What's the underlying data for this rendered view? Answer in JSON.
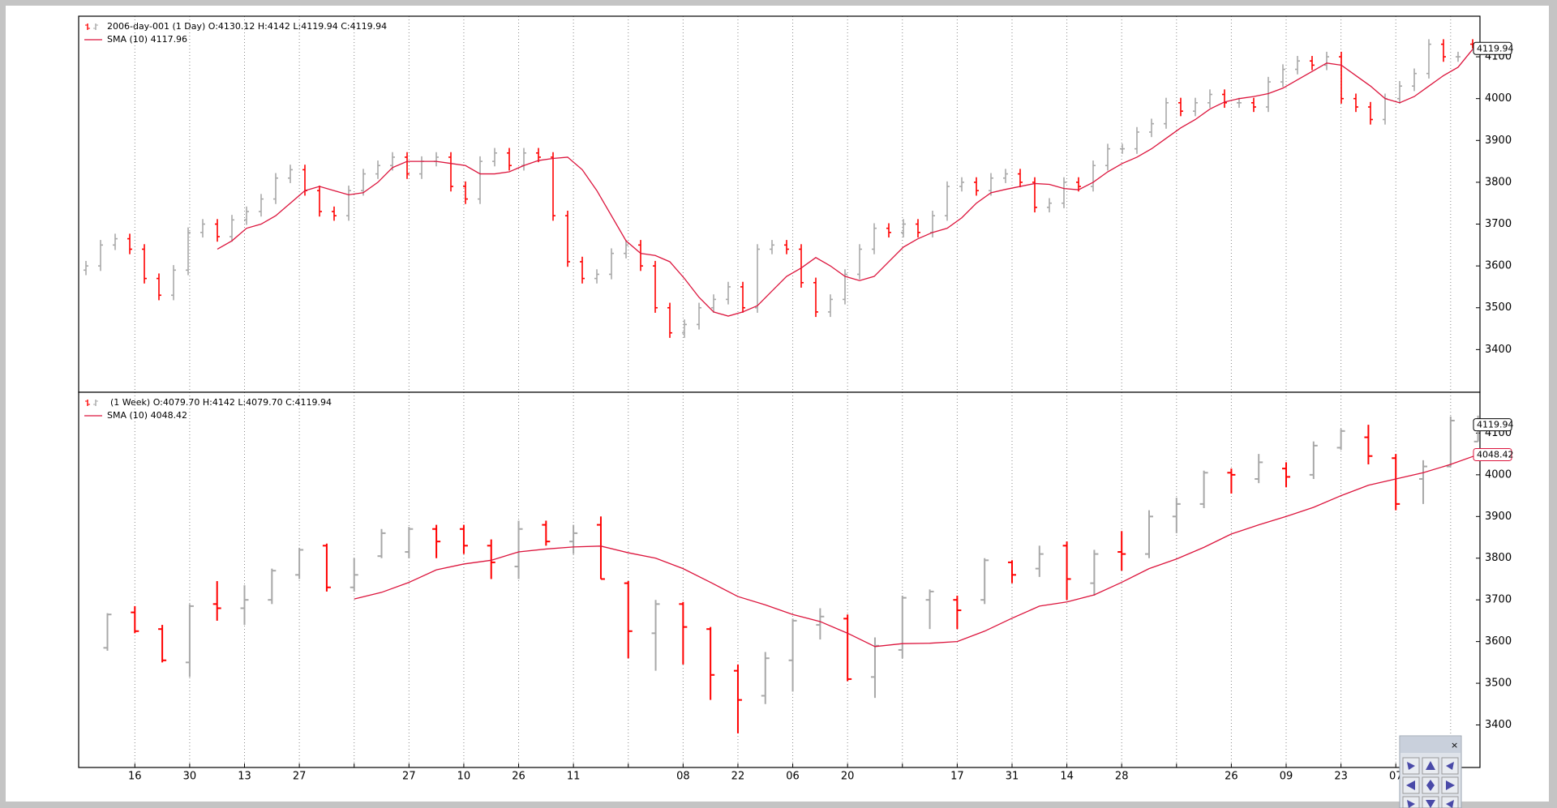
{
  "chart_data": [
    {
      "type": "ohlc",
      "series": [
        {
          "name": "2006-day-001 (1 Day) O:4130.12 H:4142 L:4119.94 C:4119.94",
          "up_color": "#a8a8a8",
          "down_color": "#ff0000",
          "open": [
            3590,
            3600,
            3650,
            3665,
            3640,
            3570,
            3530,
            3590,
            3680,
            3700,
            3670,
            3710,
            3730,
            3760,
            3810,
            3830,
            3780,
            3730,
            3720,
            3780,
            3820,
            3840,
            3860,
            3820,
            3850,
            3860,
            3790,
            3760,
            3850,
            3870,
            3840,
            3870,
            3860,
            3720,
            3610,
            3570,
            3580,
            3630,
            3650,
            3600,
            3500,
            3440,
            3460,
            3500,
            3520,
            3550,
            3500,
            3640,
            3650,
            3640,
            3560,
            3490,
            3520,
            3580,
            3640,
            3690,
            3680,
            3700,
            3680,
            3720,
            3790,
            3800,
            3780,
            3810,
            3820,
            3800,
            3740,
            3750,
            3800,
            3790,
            3840,
            3880,
            3880,
            3920,
            3940,
            3990,
            3970,
            3990,
            4010,
            3990,
            3990,
            3980,
            4040,
            4070,
            4090,
            4080,
            4100,
            4000,
            3980,
            3950,
            4000,
            4030,
            4060,
            4130,
            4100,
            4130.12
          ],
          "high": [
            3612,
            3662,
            3677,
            3677,
            3652,
            3582,
            3602,
            3692,
            3712,
            3712,
            3722,
            3742,
            3772,
            3822,
            3842,
            3842,
            3792,
            3742,
            3792,
            3832,
            3852,
            3872,
            3872,
            3862,
            3872,
            3872,
            3802,
            3862,
            3882,
            3882,
            3882,
            3882,
            3872,
            3732,
            3622,
            3592,
            3642,
            3662,
            3662,
            3612,
            3512,
            3472,
            3512,
            3532,
            3562,
            3562,
            3652,
            3662,
            3662,
            3652,
            3572,
            3532,
            3592,
            3652,
            3702,
            3702,
            3712,
            3712,
            3732,
            3802,
            3812,
            3812,
            3822,
            3832,
            3832,
            3812,
            3762,
            3812,
            3812,
            3852,
            3892,
            3892,
            3932,
            3952,
            4002,
            4002,
            4002,
            4022,
            4022,
            4002,
            4002,
            4052,
            4082,
            4102,
            4102,
            4112,
            4112,
            4012,
            3992,
            4012,
            4042,
            4072,
            4142,
            4142,
            4112,
            4142
          ],
          "low": [
            3578,
            3588,
            3638,
            3628,
            3558,
            3518,
            3518,
            3578,
            3668,
            3658,
            3658,
            3698,
            3718,
            3748,
            3798,
            3768,
            3718,
            3708,
            3708,
            3768,
            3808,
            3828,
            3808,
            3808,
            3838,
            3778,
            3748,
            3748,
            3838,
            3828,
            3828,
            3848,
            3708,
            3598,
            3558,
            3558,
            3568,
            3618,
            3588,
            3488,
            3428,
            3428,
            3448,
            3488,
            3508,
            3488,
            3488,
            3628,
            3628,
            3548,
            3478,
            3478,
            3508,
            3568,
            3628,
            3668,
            3668,
            3668,
            3668,
            3708,
            3778,
            3768,
            3768,
            3798,
            3788,
            3728,
            3728,
            3738,
            3778,
            3778,
            3828,
            3868,
            3868,
            3908,
            3928,
            3958,
            3958,
            3978,
            3978,
            3978,
            3968,
            3968,
            4028,
            4058,
            4068,
            4068,
            3988,
            3968,
            3938,
            3938,
            3988,
            4018,
            4048,
            4088,
            4088,
            4119.94
          ],
          "close": [
            3600,
            3650,
            3665,
            3640,
            3570,
            3530,
            3590,
            3680,
            3700,
            3670,
            3710,
            3730,
            3760,
            3810,
            3830,
            3780,
            3730,
            3720,
            3780,
            3820,
            3840,
            3860,
            3820,
            3850,
            3860,
            3790,
            3760,
            3850,
            3870,
            3840,
            3870,
            3860,
            3720,
            3610,
            3570,
            3580,
            3630,
            3650,
            3600,
            3500,
            3440,
            3460,
            3500,
            3520,
            3550,
            3500,
            3640,
            3650,
            3640,
            3560,
            3490,
            3520,
            3580,
            3640,
            3690,
            3680,
            3700,
            3680,
            3720,
            3790,
            3800,
            3780,
            3810,
            3820,
            3800,
            3740,
            3750,
            3800,
            3790,
            3840,
            3880,
            3880,
            3920,
            3940,
            3990,
            3970,
            3990,
            4010,
            3990,
            3990,
            3980,
            4040,
            4070,
            4090,
            4080,
            4100,
            4000,
            3980,
            3950,
            4000,
            4030,
            4060,
            4130,
            4100,
            4100,
            4119.94
          ]
        },
        {
          "name": "SMA (10) 4117.96",
          "type": "line",
          "color": "#dc143c",
          "values": [
            null,
            null,
            null,
            null,
            null,
            null,
            null,
            null,
            null,
            3640,
            3660,
            3690,
            3700,
            3720,
            3750,
            3780,
            3790,
            3780,
            3770,
            3775,
            3800,
            3835,
            3850,
            3850,
            3850,
            3845,
            3840,
            3820,
            3820,
            3825,
            3840,
            3852,
            3857,
            3860,
            3830,
            3780,
            3720,
            3660,
            3630,
            3625,
            3610,
            3570,
            3525,
            3490,
            3480,
            3490,
            3505,
            3540,
            3575,
            3595,
            3620,
            3600,
            3575,
            3565,
            3575,
            3610,
            3645,
            3665,
            3680,
            3690,
            3715,
            3750,
            3775,
            3783,
            3790,
            3797,
            3795,
            3785,
            3782,
            3800,
            3825,
            3845,
            3860,
            3880,
            3905,
            3930,
            3950,
            3975,
            3992,
            4000,
            4005,
            4012,
            4025,
            4045,
            4065,
            4085,
            4080,
            4055,
            4030,
            4000,
            3990,
            4005,
            4030,
            4055,
            4075,
            4117.96
          ]
        }
      ],
      "ylim": [
        3298,
        4197
      ],
      "yticks": [
        3400,
        3500,
        3600,
        3700,
        3800,
        3900,
        4000,
        4100
      ],
      "grid": true,
      "legend": "upper left",
      "price_tags": [
        {
          "value": 4119.94,
          "label": "4119.94",
          "color": "#000000"
        }
      ]
    },
    {
      "type": "ohlc",
      "series": [
        {
          "name": "(1 Week) O:4079.70 H:4142 L:4079.70 C:4119.94",
          "up_color": "#a8a8a8",
          "down_color": "#ff0000",
          "open": [
            3585,
            3670,
            3630,
            3550,
            3690,
            3680,
            3700,
            3760,
            3830,
            3730,
            3805,
            3815,
            3870,
            3870,
            3830,
            3780,
            3880,
            3840,
            3880,
            3740,
            3620,
            3690,
            3630,
            3530,
            3470,
            3555,
            3640,
            3655,
            3515,
            3580,
            3700,
            3700,
            3700,
            3790,
            3775,
            3830,
            3740,
            3815,
            3810,
            3900,
            3930,
            4005,
            3990,
            4015,
            4000,
            4065,
            4090,
            4040,
            3990,
            4020,
            4079.7
          ],
          "high": [
            3668,
            3685,
            3640,
            3690,
            3745,
            3735,
            3775,
            3825,
            3835,
            3800,
            3870,
            3875,
            3880,
            3880,
            3845,
            3890,
            3890,
            3880,
            3900,
            3745,
            3700,
            3695,
            3635,
            3545,
            3575,
            3655,
            3680,
            3665,
            3610,
            3710,
            3725,
            3710,
            3800,
            3795,
            3830,
            3840,
            3820,
            3865,
            3915,
            3945,
            4010,
            4015,
            4050,
            4030,
            4080,
            4110,
            4120,
            4050,
            4035,
            4140,
            4142
          ],
          "low": [
            3578,
            3620,
            3550,
            3515,
            3650,
            3640,
            3690,
            3750,
            3720,
            3720,
            3800,
            3800,
            3800,
            3810,
            3750,
            3750,
            3830,
            3810,
            3750,
            3560,
            3530,
            3545,
            3460,
            3380,
            3450,
            3480,
            3605,
            3505,
            3465,
            3560,
            3630,
            3630,
            3690,
            3740,
            3755,
            3700,
            3710,
            3770,
            3800,
            3860,
            3920,
            3955,
            3980,
            3970,
            3990,
            4060,
            4025,
            3915,
            3930,
            4020,
            4079.7
          ],
          "close": [
            3665,
            3625,
            3555,
            3685,
            3680,
            3700,
            3770,
            3820,
            3730,
            3760,
            3860,
            3870,
            3840,
            3830,
            3790,
            3870,
            3840,
            3860,
            3750,
            3625,
            3690,
            3635,
            3520,
            3460,
            3560,
            3650,
            3660,
            3510,
            3590,
            3705,
            3720,
            3675,
            3795,
            3760,
            3810,
            3750,
            3810,
            3810,
            3900,
            3930,
            4005,
            4000,
            4030,
            3995,
            4070,
            4105,
            4045,
            3930,
            4020,
            4130,
            4119.94
          ]
        },
        {
          "name": "SMA (10) 4048.42",
          "type": "line",
          "color": "#dc143c",
          "values": [
            null,
            null,
            null,
            null,
            null,
            null,
            null,
            null,
            null,
            3702,
            3718,
            3742,
            3772,
            3786,
            3795,
            3815,
            3822,
            3827,
            3829,
            3813,
            3800,
            3775,
            3742,
            3708,
            3688,
            3665,
            3648,
            3620,
            3588,
            3595,
            3596,
            3600,
            3625,
            3656,
            3685,
            3695,
            3712,
            3742,
            3775,
            3798,
            3826,
            3858,
            3880,
            3900,
            3922,
            3950,
            3975,
            3990,
            4005,
            4025,
            4048.42
          ]
        }
      ],
      "xlim": [
        -1.05,
        50.07
      ],
      "xticks": [
        1,
        3,
        5,
        7,
        9,
        11,
        13,
        15,
        17,
        19,
        21,
        23,
        25,
        27,
        29,
        31,
        33,
        35,
        37,
        39,
        41,
        43,
        45,
        47,
        49
      ],
      "xtick_labels": [
        "16",
        "30",
        "13",
        "27",
        null,
        "27",
        "10",
        "26",
        "11",
        null,
        "08",
        "22",
        "06",
        "20",
        null,
        "17",
        "31",
        "14",
        "28",
        null,
        "26",
        "09",
        "23",
        "07",
        null
      ],
      "ylim": [
        3298,
        4198
      ],
      "yticks": [
        3400,
        3500,
        3600,
        3700,
        3800,
        3900,
        4000,
        4100
      ],
      "grid": true,
      "legend": "upper left",
      "price_tags": [
        {
          "value": 4119.94,
          "label": "4119.94",
          "color": "#000000"
        },
        {
          "value": 4048.42,
          "label": "4048.42",
          "color": "#dc143c"
        }
      ]
    }
  ]
}
